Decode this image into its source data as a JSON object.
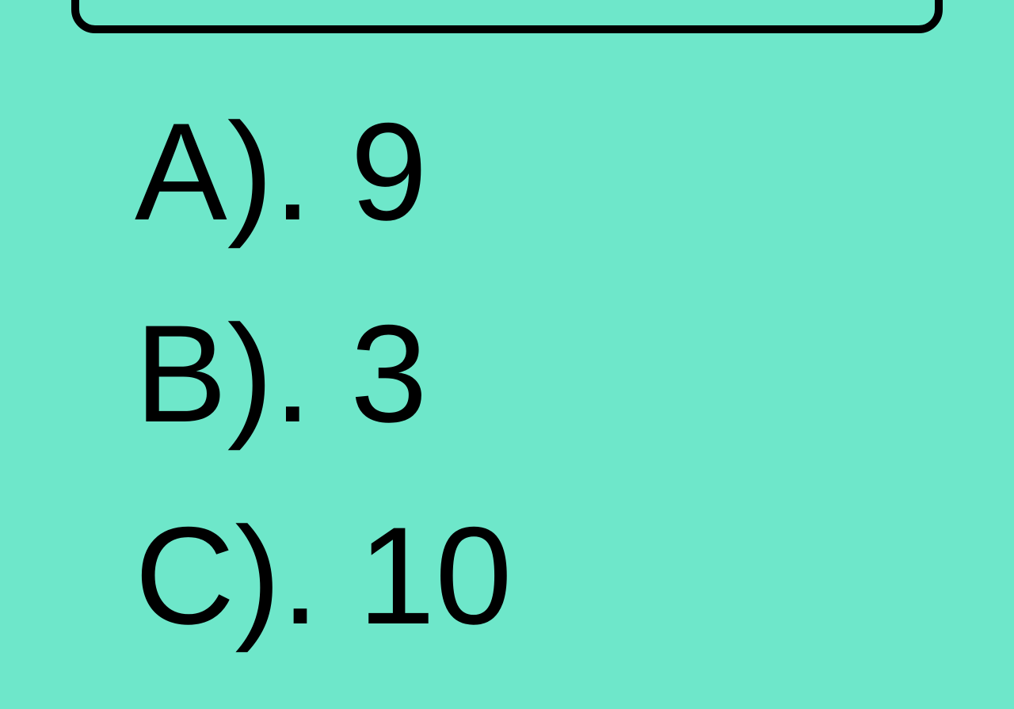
{
  "background_color": "#6ee7ca",
  "text_color": "#000000",
  "border_color": "#000000",
  "font_size": 175,
  "options": [
    {
      "label": "A). ",
      "value": "9"
    },
    {
      "label": "B). ",
      "value": "3"
    },
    {
      "label": "C). ",
      "value": "10"
    }
  ]
}
